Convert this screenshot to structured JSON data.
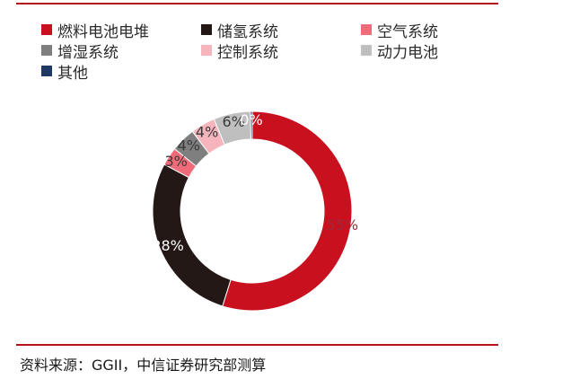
{
  "chart_data": {
    "type": "pie",
    "donut": true,
    "legend_position": "top",
    "series": [
      {
        "name": "燃料电池电堆",
        "value": 55,
        "label": "55%",
        "color": "#c8101f"
      },
      {
        "name": "储氢系统",
        "value": 28,
        "label": "28%",
        "color": "#231815"
      },
      {
        "name": "空气系统",
        "value": 3,
        "label": "3%",
        "color": "#f06b7a"
      },
      {
        "name": "增湿系统",
        "value": 4,
        "label": "4%",
        "color": "#7f7f7f"
      },
      {
        "name": "控制系统",
        "value": 4,
        "label": "4%",
        "color": "#f6b4bd"
      },
      {
        "name": "动力电池",
        "value": 6,
        "label": "6%",
        "color": "#bfbfbf"
      },
      {
        "name": "其他",
        "value": 0.3,
        "label": "0%",
        "color": "#1f3864"
      }
    ]
  },
  "source": "资料来源：GGII，中信证券研究部测算",
  "colors": {
    "rule": "#b3121b"
  }
}
